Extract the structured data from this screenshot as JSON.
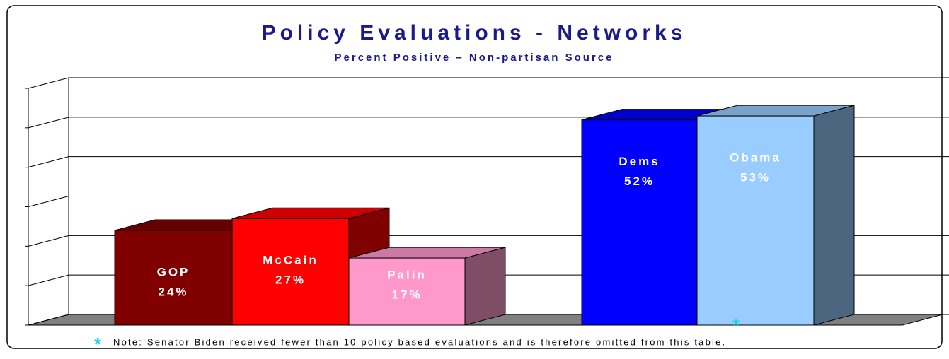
{
  "chart_data": {
    "type": "bar3d",
    "title": "Policy Evaluations - Networks",
    "subtitle": "Percent Positive – Non-partisan Source",
    "categories": [
      "GOP",
      "McCain",
      "Palin",
      "Dems",
      "Obama"
    ],
    "values": [
      24,
      27,
      17,
      52,
      53
    ],
    "value_labels": [
      "24%",
      "27%",
      "17%",
      "52%",
      "53%"
    ],
    "colors": [
      "#800000",
      "#ff0000",
      "#ff99cc",
      "#0000ff",
      "#99ccff"
    ],
    "ylim": [
      0,
      60
    ],
    "yticks": [
      0,
      10,
      20,
      30,
      40,
      50,
      60
    ],
    "grid": true,
    "note_marker": "*",
    "note": "Note: Senator Biden received fewer than 10 policy based evaluations and is therefore omitted from this table."
  }
}
